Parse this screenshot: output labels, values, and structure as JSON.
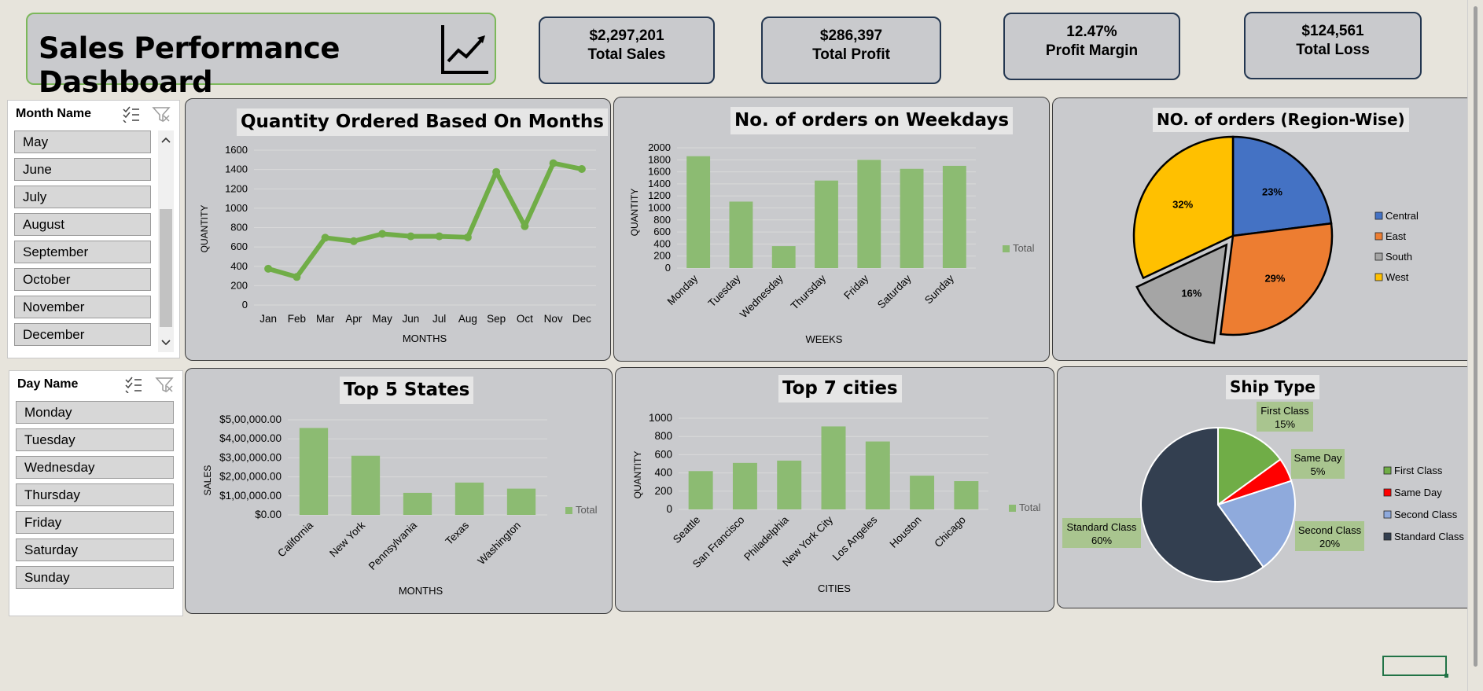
{
  "dashboard": {
    "title": "Sales Performance Dashboard",
    "icon": "trend-line-chart-icon"
  },
  "kpis": [
    {
      "value": "$2,297,201",
      "label": "Total Sales"
    },
    {
      "value": "$286,397",
      "label": "Total Profit"
    },
    {
      "value": "12.47%",
      "label": "Profit Margin"
    },
    {
      "value": "$124,561",
      "label": "Total Loss"
    }
  ],
  "month_slicer": {
    "header": "Month Name",
    "items": [
      "May",
      "June",
      "July",
      "August",
      "September",
      "October",
      "November",
      "December"
    ]
  },
  "day_slicer": {
    "header": "Day Name",
    "items": [
      "Monday",
      "Tuesday",
      "Wednesday",
      "Thursday",
      "Friday",
      "Saturday",
      "Sunday"
    ]
  },
  "colors": {
    "bar_green": "#8cbb72",
    "line_green": "#70ad47",
    "central": "#4472c4",
    "east": "#ed7d31",
    "south": "#a5a5a5",
    "west": "#ffc000",
    "first_class": "#70ad47",
    "same_day": "#ff0000",
    "second_class": "#8faadc",
    "standard_class": "#333f50"
  },
  "chart_data": [
    {
      "id": "months",
      "type": "line",
      "title": "Quantity Ordered Based On Months",
      "xlabel": "MONTHS",
      "ylabel": "QUANTITY",
      "categories": [
        "Jan",
        "Feb",
        "Mar",
        "Apr",
        "May",
        "Jun",
        "Jul",
        "Aug",
        "Sep",
        "Oct",
        "Nov",
        "Dec"
      ],
      "values": [
        375,
        290,
        695,
        660,
        735,
        710,
        710,
        700,
        1375,
        815,
        1465,
        1405
      ],
      "ylim": [
        0,
        1600
      ],
      "yticks": [
        "0",
        "200",
        "400",
        "600",
        "800",
        "1000",
        "1200",
        "1400",
        "1600"
      ],
      "grid": true
    },
    {
      "id": "weekdays",
      "type": "bar",
      "title": "No. of orders on Weekdays",
      "xlabel": "WEEKS",
      "ylabel": "QUANTITY",
      "categories": [
        "Monday",
        "Tuesday",
        "Wednesday",
        "Thursday",
        "Friday",
        "Saturday",
        "Sunday"
      ],
      "values": [
        1860,
        1105,
        365,
        1455,
        1800,
        1650,
        1700
      ],
      "ylim": [
        0,
        2000
      ],
      "yticks": [
        "0",
        "200",
        "400",
        "600",
        "800",
        "1000",
        "1200",
        "1400",
        "1600",
        "1800",
        "2000"
      ],
      "legend": "Total",
      "grid": true
    },
    {
      "id": "region",
      "type": "pie",
      "title": "NO. of orders (Region-Wise)",
      "slices": [
        {
          "name": "Central",
          "value": 23,
          "label": "23%"
        },
        {
          "name": "East",
          "value": 29,
          "label": "29%"
        },
        {
          "name": "South",
          "value": 16,
          "label": "16%"
        },
        {
          "name": "West",
          "value": 32,
          "label": "32%"
        }
      ]
    },
    {
      "id": "states",
      "type": "bar",
      "title": "Top 5 States",
      "xlabel": "MONTHS",
      "ylabel": "SALES",
      "categories": [
        "California",
        "New York",
        "Pennsylvania",
        "Texas",
        "Washington"
      ],
      "values": [
        457000,
        311000,
        116000,
        170000,
        138000
      ],
      "ylim": [
        0,
        500000
      ],
      "yticks": [
        "$0.00",
        "$1,00,000.00",
        "$2,00,000.00",
        "$3,00,000.00",
        "$4,00,000.00",
        "$5,00,000.00"
      ],
      "legend": "Total",
      "grid": true
    },
    {
      "id": "cities",
      "type": "bar",
      "title": "Top 7 cities",
      "xlabel": "CITIES",
      "ylabel": "QUANTITY",
      "categories": [
        "Seattle",
        "San Francisco",
        "Philadelphia",
        "New York City",
        "Los Angeles",
        "Houston",
        "Chicago"
      ],
      "values": [
        420,
        510,
        535,
        910,
        745,
        370,
        310
      ],
      "ylim": [
        0,
        1000
      ],
      "yticks": [
        "0",
        "200",
        "400",
        "600",
        "800",
        "1000"
      ],
      "legend": "Total",
      "grid": true
    },
    {
      "id": "ship",
      "type": "pie",
      "title": "Ship Type",
      "slices": [
        {
          "name": "First Class",
          "value": 15,
          "label": "First Class",
          "pct": "15%"
        },
        {
          "name": "Same Day",
          "value": 5,
          "label": "Same Day",
          "pct": "5%"
        },
        {
          "name": "Second Class",
          "value": 20,
          "label": "Second Class",
          "pct": "20%"
        },
        {
          "name": "Standard Class",
          "value": 60,
          "label": "Standard Class",
          "pct": "60%"
        }
      ]
    }
  ]
}
